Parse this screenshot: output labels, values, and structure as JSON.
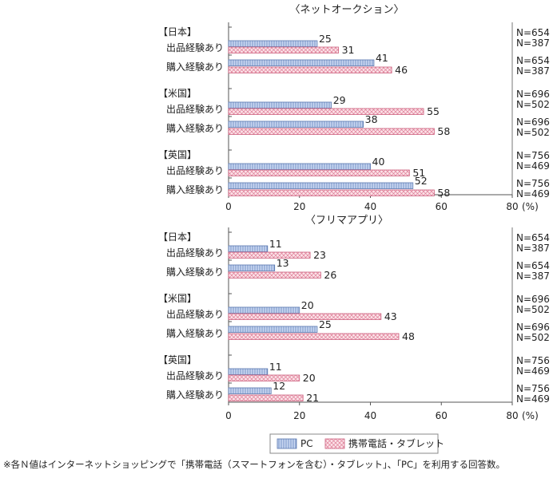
{
  "footnote": "※各Ｎ値はインターネットショッピングで「携帯電話（スマートフォンを含む）・タブレット」、「PC」を利用する回答数。",
  "legend": {
    "items": [
      "PC",
      "携帯電話・タブレット"
    ]
  },
  "colors": {
    "pc": "#9fb7e3",
    "pc_stroke": "#5a78b0",
    "mobile": "#f6c6d0",
    "mobile_stroke": "#cc5f7d",
    "axis": "#555555"
  },
  "chart_data": [
    {
      "type": "bar",
      "orientation": "horizontal",
      "title": "〈ネットオークション〉",
      "x_unit": "(%)",
      "xlim": [
        0,
        80
      ],
      "x_ticks": [
        0,
        20,
        40,
        60,
        80
      ],
      "groups": [
        {
          "country": "【日本】",
          "rows": [
            {
              "label": "出品経験あり",
              "pc": 25,
              "mobile": 31,
              "n_pc": "N=654",
              "n_mobile": "N=387"
            },
            {
              "label": "購入経験あり",
              "pc": 41,
              "mobile": 46,
              "n_pc": "N=654",
              "n_mobile": "N=387"
            }
          ]
        },
        {
          "country": "【米国】",
          "rows": [
            {
              "label": "出品経験あり",
              "pc": 29,
              "mobile": 55,
              "n_pc": "N=696",
              "n_mobile": "N=502"
            },
            {
              "label": "購入経験あり",
              "pc": 38,
              "mobile": 58,
              "n_pc": "N=696",
              "n_mobile": "N=502"
            }
          ]
        },
        {
          "country": "【英国】",
          "rows": [
            {
              "label": "出品経験あり",
              "pc": 40,
              "mobile": 51,
              "n_pc": "N=756",
              "n_mobile": "N=469"
            },
            {
              "label": "購入経験あり",
              "pc": 52,
              "mobile": 58,
              "n_pc": "N=756",
              "n_mobile": "N=469"
            }
          ]
        }
      ]
    },
    {
      "type": "bar",
      "orientation": "horizontal",
      "title": "〈フリマアプリ〉",
      "x_unit": "(%)",
      "xlim": [
        0,
        80
      ],
      "x_ticks": [
        0,
        20,
        40,
        60,
        80
      ],
      "groups": [
        {
          "country": "【日本】",
          "rows": [
            {
              "label": "出品経験あり",
              "pc": 11,
              "mobile": 23,
              "n_pc": "N=654",
              "n_mobile": "N=387"
            },
            {
              "label": "購入経験あり",
              "pc": 13,
              "mobile": 26,
              "n_pc": "N=654",
              "n_mobile": "N=387"
            }
          ]
        },
        {
          "country": "【米国】",
          "rows": [
            {
              "label": "出品経験あり",
              "pc": 20,
              "mobile": 43,
              "n_pc": "N=696",
              "n_mobile": "N=502"
            },
            {
              "label": "購入経験あり",
              "pc": 25,
              "mobile": 48,
              "n_pc": "N=696",
              "n_mobile": "N=502"
            }
          ]
        },
        {
          "country": "【英国】",
          "rows": [
            {
              "label": "出品経験あり",
              "pc": 11,
              "mobile": 20,
              "n_pc": "N=756",
              "n_mobile": "N=469"
            },
            {
              "label": "購入経験あり",
              "pc": 12,
              "mobile": 21,
              "n_pc": "N=756",
              "n_mobile": "N=469"
            }
          ]
        }
      ]
    }
  ]
}
